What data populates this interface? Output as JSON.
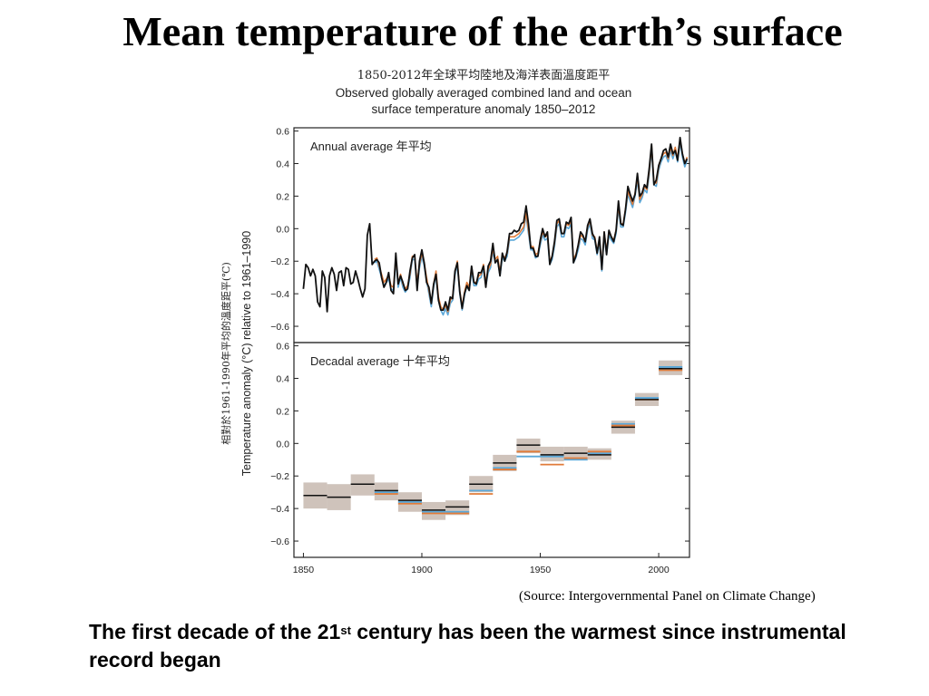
{
  "slide": {
    "title": "Mean temperature of the earth’s surface",
    "source": "(Source: Intergovernmental Panel on Climate Change)",
    "footer_pre": "The first decade of the 21",
    "footer_sup": "st",
    "footer_post": " century has been the warmest since instrumental record began"
  },
  "figure": {
    "title_cn": "1850-2012年全球平均陸地及海洋表面溫度距平",
    "title_en_1": "Observed globally averaged combined land and ocean",
    "title_en_2": "surface temperature anomaly 1850–2012"
  },
  "colors": {
    "black_series": "#111111",
    "orange_series": "#e07b39",
    "blue_series": "#5aa7d8",
    "uncertainty_box": "#cfc3bb"
  },
  "chart_data": [
    {
      "type": "line",
      "title": "Annual average 年平均",
      "xlabel": "",
      "ylabel": "Temperature anomaly (°C) relative to 1961–1990",
      "ylabel_cn": "相對於1961-1990年平均的溫度距平(℃)",
      "xlim": [
        1846,
        2013
      ],
      "ylim": [
        -0.7,
        0.62
      ],
      "yticks": [
        "0.6",
        "0.4",
        "0.2",
        "0.0",
        "−0.2",
        "−0.4",
        "−0.6"
      ],
      "ytick_values": [
        0.6,
        0.4,
        0.2,
        0.0,
        -0.2,
        -0.4,
        -0.6
      ],
      "series": [
        {
          "color": "#111111",
          "start_year": 1850,
          "values": [
            -0.37,
            -0.22,
            -0.24,
            -0.29,
            -0.25,
            -0.29,
            -0.45,
            -0.48,
            -0.26,
            -0.3,
            -0.51,
            -0.29,
            -0.24,
            -0.28,
            -0.38,
            -0.27,
            -0.26,
            -0.35,
            -0.24,
            -0.25,
            -0.34,
            -0.33,
            -0.26,
            -0.31,
            -0.37,
            -0.42,
            -0.37,
            -0.04,
            0.03,
            -0.22,
            -0.2,
            -0.19,
            -0.21,
            -0.3,
            -0.36,
            -0.33,
            -0.27,
            -0.38,
            -0.4,
            -0.15,
            -0.34,
            -0.29,
            -0.33,
            -0.38,
            -0.37,
            -0.26,
            -0.18,
            -0.16,
            -0.38,
            -0.2,
            -0.13,
            -0.21,
            -0.33,
            -0.36,
            -0.46,
            -0.34,
            -0.28,
            -0.44,
            -0.5,
            -0.5,
            -0.45,
            -0.5,
            -0.42,
            -0.43,
            -0.26,
            -0.21,
            -0.39,
            -0.49,
            -0.4,
            -0.35,
            -0.38,
            -0.23,
            -0.33,
            -0.34,
            -0.27,
            -0.27,
            -0.23,
            -0.36,
            -0.23,
            -0.2,
            -0.09,
            -0.21,
            -0.19,
            -0.29,
            -0.15,
            -0.2,
            -0.14,
            -0.03,
            -0.03,
            -0.01,
            -0.02,
            -0.01,
            0.03,
            0.04,
            0.14,
            0.03,
            -0.12,
            -0.12,
            -0.17,
            -0.17,
            -0.07,
            0.0,
            -0.05,
            -0.02,
            -0.22,
            -0.17,
            -0.08,
            0.05,
            0.06,
            -0.03,
            -0.03,
            0.04,
            0.03,
            0.07,
            -0.21,
            -0.17,
            -0.1,
            -0.02,
            -0.04,
            -0.08,
            0.02,
            0.06,
            -0.03,
            -0.06,
            -0.15,
            -0.05,
            -0.25,
            -0.02,
            -0.16,
            -0.01,
            -0.05,
            -0.08,
            -0.01,
            0.17,
            0.03,
            0.02,
            0.12,
            0.26,
            0.21,
            0.17,
            0.21,
            0.34,
            0.2,
            0.22,
            0.27,
            0.25,
            0.37,
            0.52,
            0.27,
            0.3,
            0.39,
            0.43,
            0.48,
            0.49,
            0.44,
            0.52,
            0.46,
            0.48,
            0.42,
            0.56,
            0.46,
            0.4,
            0.43
          ]
        },
        {
          "color": "#e07b39",
          "start_year": 1880,
          "values": [
            -0.19,
            -0.18,
            -0.23,
            -0.28,
            -0.33,
            -0.31,
            -0.29,
            -0.35,
            -0.36,
            -0.18,
            -0.34,
            -0.28,
            -0.34,
            -0.37,
            -0.35,
            -0.28,
            -0.17,
            -0.17,
            -0.33,
            -0.22,
            -0.15,
            -0.21,
            -0.3,
            -0.38,
            -0.46,
            -0.34,
            -0.26,
            -0.42,
            -0.48,
            -0.5,
            -0.47,
            -0.51,
            -0.44,
            -0.42,
            -0.27,
            -0.2,
            -0.38,
            -0.48,
            -0.39,
            -0.33,
            -0.36,
            -0.24,
            -0.33,
            -0.33,
            -0.29,
            -0.28,
            -0.22,
            -0.33,
            -0.25,
            -0.22,
            -0.12,
            -0.19,
            -0.17,
            -0.27,
            -0.16,
            -0.18,
            -0.15,
            -0.05,
            -0.05,
            -0.05,
            -0.04,
            -0.03,
            -0.01,
            0.01,
            0.1,
            -0.01,
            -0.11,
            -0.11,
            -0.16,
            -0.15,
            -0.08,
            -0.02,
            -0.05,
            -0.04,
            -0.2,
            -0.17,
            -0.09,
            0.03,
            0.05,
            -0.03,
            -0.03,
            0.03,
            0.02,
            0.05,
            -0.19,
            -0.16,
            -0.11,
            -0.04,
            -0.05,
            -0.08,
            0.01,
            0.05,
            -0.04,
            -0.05,
            -0.14,
            -0.07,
            -0.24,
            -0.02,
            -0.14,
            -0.02,
            -0.05,
            -0.07,
            -0.01,
            0.14,
            0.03,
            0.03,
            0.12,
            0.23,
            0.19,
            0.15,
            0.22,
            0.32,
            0.18,
            0.21,
            0.26,
            0.24,
            0.35,
            0.51,
            0.29,
            0.28,
            0.38,
            0.43,
            0.46,
            0.47,
            0.43,
            0.5,
            0.45,
            0.5,
            0.43,
            0.55,
            0.46,
            0.4,
            0.44
          ]
        },
        {
          "color": "#5aa7d8",
          "start_year": 1880,
          "values": [
            -0.21,
            -0.2,
            -0.25,
            -0.3,
            -0.35,
            -0.33,
            -0.31,
            -0.37,
            -0.38,
            -0.2,
            -0.36,
            -0.3,
            -0.36,
            -0.39,
            -0.37,
            -0.3,
            -0.19,
            -0.19,
            -0.35,
            -0.24,
            -0.17,
            -0.23,
            -0.32,
            -0.4,
            -0.48,
            -0.36,
            -0.28,
            -0.44,
            -0.5,
            -0.53,
            -0.49,
            -0.53,
            -0.46,
            -0.44,
            -0.29,
            -0.22,
            -0.4,
            -0.5,
            -0.41,
            -0.35,
            -0.38,
            -0.26,
            -0.35,
            -0.35,
            -0.31,
            -0.3,
            -0.24,
            -0.35,
            -0.27,
            -0.24,
            -0.14,
            -0.21,
            -0.19,
            -0.29,
            -0.18,
            -0.2,
            -0.17,
            -0.07,
            -0.07,
            -0.07,
            -0.06,
            -0.05,
            -0.03,
            -0.01,
            0.08,
            -0.03,
            -0.13,
            -0.13,
            -0.18,
            -0.17,
            -0.1,
            -0.04,
            -0.07,
            -0.06,
            -0.22,
            -0.19,
            -0.11,
            0.01,
            0.03,
            -0.05,
            -0.05,
            0.01,
            0.0,
            0.03,
            -0.21,
            -0.18,
            -0.13,
            -0.06,
            -0.07,
            -0.1,
            -0.01,
            0.03,
            -0.06,
            -0.07,
            -0.16,
            -0.09,
            -0.26,
            -0.04,
            -0.16,
            -0.04,
            -0.07,
            -0.09,
            -0.03,
            0.12,
            0.01,
            0.01,
            0.1,
            0.21,
            0.17,
            0.13,
            0.2,
            0.3,
            0.16,
            0.19,
            0.24,
            0.22,
            0.33,
            0.49,
            0.27,
            0.26,
            0.36,
            0.41,
            0.44,
            0.45,
            0.41,
            0.48,
            0.43,
            0.48,
            0.41,
            0.53,
            0.44,
            0.38,
            0.42
          ]
        }
      ]
    },
    {
      "type": "bar",
      "title": "Decadal average 十年平均",
      "xlabel": "",
      "ylabel": "Temperature anomaly (°C) relative to 1961–1990",
      "xlim": [
        1846,
        2013
      ],
      "ylim": [
        -0.7,
        0.62
      ],
      "xticks": [
        "1850",
        "1900",
        "1950",
        "2000"
      ],
      "xtick_values": [
        1850,
        1900,
        1950,
        2000
      ],
      "yticks": [
        "0.6",
        "0.4",
        "0.2",
        "0.0",
        "−0.2",
        "−0.4",
        "−0.6"
      ],
      "ytick_values": [
        0.6,
        0.4,
        0.2,
        0.0,
        -0.2,
        -0.4,
        -0.6
      ],
      "decades": [
        {
          "start": 1850,
          "black": -0.32,
          "lo": -0.4,
          "hi": -0.24
        },
        {
          "start": 1860,
          "black": -0.33,
          "lo": -0.41,
          "hi": -0.25
        },
        {
          "start": 1870,
          "black": -0.25,
          "lo": -0.32,
          "hi": -0.19
        },
        {
          "start": 1880,
          "black": -0.29,
          "orange": -0.31,
          "blue": -0.3,
          "lo": -0.35,
          "hi": -0.24
        },
        {
          "start": 1890,
          "black": -0.35,
          "orange": -0.37,
          "blue": -0.36,
          "lo": -0.42,
          "hi": -0.3
        },
        {
          "start": 1900,
          "black": -0.41,
          "orange": -0.43,
          "blue": -0.42,
          "lo": -0.47,
          "hi": -0.36
        },
        {
          "start": 1910,
          "black": -0.39,
          "orange": -0.43,
          "blue": -0.42,
          "lo": -0.44,
          "hi": -0.35
        },
        {
          "start": 1920,
          "black": -0.25,
          "orange": -0.31,
          "blue": -0.29,
          "lo": -0.3,
          "hi": -0.2
        },
        {
          "start": 1930,
          "black": -0.12,
          "orange": -0.16,
          "blue": -0.15,
          "lo": -0.17,
          "hi": -0.07
        },
        {
          "start": 1940,
          "black": -0.01,
          "orange": -0.05,
          "blue": -0.08,
          "lo": -0.06,
          "hi": 0.03
        },
        {
          "start": 1950,
          "black": -0.07,
          "orange": -0.13,
          "blue": -0.08,
          "lo": -0.11,
          "hi": -0.02
        },
        {
          "start": 1960,
          "black": -0.06,
          "orange": -0.09,
          "blue": -0.1,
          "lo": -0.1,
          "hi": -0.02
        },
        {
          "start": 1970,
          "black": -0.07,
          "orange": -0.05,
          "blue": -0.06,
          "lo": -0.1,
          "hi": -0.03
        },
        {
          "start": 1980,
          "black": 0.1,
          "orange": 0.11,
          "blue": 0.12,
          "lo": 0.06,
          "hi": 0.14
        },
        {
          "start": 1990,
          "black": 0.27,
          "orange": 0.27,
          "blue": 0.28,
          "lo": 0.23,
          "hi": 0.31
        },
        {
          "start": 2000,
          "black": 0.46,
          "orange": 0.45,
          "blue": 0.47,
          "lo": 0.42,
          "hi": 0.51
        }
      ]
    }
  ]
}
